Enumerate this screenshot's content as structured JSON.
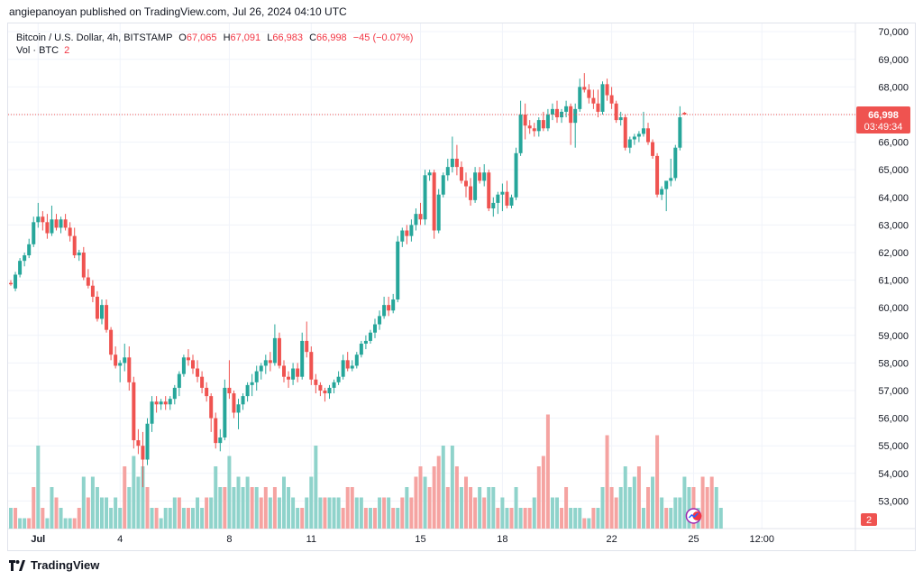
{
  "header": {
    "published": "angiepanoyan published on TradingView.com, Jul 26, 2024 04:10 UTC"
  },
  "legend": {
    "symbol": "Bitcoin / U.S. Dollar, 4h, BITSTAMP",
    "o_label": "O",
    "o": "67,065",
    "h_label": "H",
    "h": "67,091",
    "l_label": "L",
    "l": "66,983",
    "c_label": "C",
    "c": "66,998",
    "change": "−45 (−0.07%)",
    "vol_label": "Vol · BTC",
    "vol_value": "2"
  },
  "price_tag": {
    "price": "66,998",
    "countdown": "03:49:34"
  },
  "volume_tag": "2",
  "footer": {
    "brand": "TradingView"
  },
  "colors": {
    "up": "#26a69a",
    "down": "#ef5350",
    "up_vol": "#8fd3cb",
    "down_vol": "#f5a3a1",
    "grid": "#f0f3fa",
    "axis_text": "#131722"
  },
  "chart_data": {
    "type": "candlestick",
    "title": "Bitcoin / U.S. Dollar, 4h, BITSTAMP",
    "ylim": [
      52000,
      70300
    ],
    "yticks": [
      "70,000",
      "69,000",
      "68,000",
      "67,000",
      "66,000",
      "65,000",
      "64,000",
      "63,000",
      "62,000",
      "61,000",
      "60,000",
      "59,000",
      "58,000",
      "57,000",
      "56,000",
      "55,000",
      "54,000",
      "53,000"
    ],
    "ytick_values": [
      70000,
      69000,
      68000,
      67000,
      66000,
      65000,
      64000,
      63000,
      62000,
      61000,
      60000,
      59000,
      58000,
      57000,
      56000,
      55000,
      54000,
      53000
    ],
    "xticks": [
      {
        "label": "Jul",
        "index": 6
      },
      {
        "label": "4",
        "index": 24
      },
      {
        "label": "8",
        "index": 48
      },
      {
        "label": "11",
        "index": 66
      },
      {
        "label": "15",
        "index": 90
      },
      {
        "label": "18",
        "index": 108
      },
      {
        "label": "22",
        "index": 132
      },
      {
        "label": "25",
        "index": 150
      },
      {
        "label": "12:00",
        "index": 165
      }
    ],
    "last_price": 66998,
    "ohlc": [
      [
        60900,
        61000,
        60800,
        60850
      ],
      [
        60700,
        61300,
        60600,
        61200
      ],
      [
        61200,
        61800,
        61100,
        61700
      ],
      [
        61700,
        62000,
        61500,
        61900
      ],
      [
        61900,
        62500,
        61800,
        62300
      ],
      [
        62300,
        63300,
        62200,
        63100
      ],
      [
        63100,
        63800,
        62900,
        63300
      ],
      [
        63300,
        63500,
        62800,
        63100
      ],
      [
        63100,
        63400,
        62500,
        62700
      ],
      [
        62700,
        63700,
        62600,
        63200
      ],
      [
        63200,
        63400,
        62800,
        62900
      ],
      [
        62900,
        63300,
        62700,
        63200
      ],
      [
        63200,
        63400,
        62800,
        62900
      ],
      [
        62900,
        63100,
        62400,
        62600
      ],
      [
        62600,
        62900,
        61800,
        61900
      ],
      [
        61900,
        62100,
        61700,
        62000
      ],
      [
        62000,
        62200,
        61000,
        61100
      ],
      [
        61100,
        61400,
        60700,
        60800
      ],
      [
        60800,
        61000,
        60200,
        60400
      ],
      [
        60400,
        60600,
        59500,
        59600
      ],
      [
        59600,
        60300,
        59400,
        60100
      ],
      [
        60100,
        60300,
        59100,
        59200
      ],
      [
        59200,
        59300,
        58100,
        58300
      ],
      [
        58300,
        58600,
        57800,
        57900
      ],
      [
        57900,
        58100,
        57300,
        58000
      ],
      [
        58000,
        58700,
        57700,
        58200
      ],
      [
        58200,
        58600,
        57000,
        57300
      ],
      [
        57300,
        57500,
        54900,
        55200
      ],
      [
        55200,
        55600,
        54700,
        55000
      ],
      [
        55000,
        55500,
        53500,
        54500
      ],
      [
        54500,
        56000,
        54300,
        55800
      ],
      [
        55800,
        56800,
        55500,
        56600
      ],
      [
        56600,
        56800,
        56200,
        56500
      ],
      [
        56500,
        56700,
        56300,
        56600
      ],
      [
        56600,
        56800,
        56300,
        56500
      ],
      [
        56500,
        56800,
        56300,
        56700
      ],
      [
        56700,
        57200,
        56500,
        57100
      ],
      [
        57100,
        57700,
        56800,
        57600
      ],
      [
        57600,
        58300,
        57500,
        58200
      ],
      [
        58200,
        58500,
        57900,
        58100
      ],
      [
        58100,
        58300,
        57600,
        57800
      ],
      [
        57800,
        58100,
        57300,
        57500
      ],
      [
        57500,
        57700,
        56900,
        57100
      ],
      [
        57100,
        57300,
        56600,
        56800
      ],
      [
        56800,
        56900,
        55500,
        56000
      ],
      [
        56000,
        56200,
        54900,
        55100
      ],
      [
        55100,
        55600,
        54800,
        55300
      ],
      [
        55300,
        57400,
        55200,
        57100
      ],
      [
        57100,
        58100,
        56700,
        56900
      ],
      [
        56900,
        57000,
        56000,
        56200
      ],
      [
        56200,
        56700,
        55600,
        56500
      ],
      [
        56500,
        56900,
        56300,
        56800
      ],
      [
        56800,
        57300,
        56600,
        57200
      ],
      [
        57200,
        57600,
        56800,
        57300
      ],
      [
        57300,
        57900,
        57000,
        57700
      ],
      [
        57700,
        58000,
        57400,
        57900
      ],
      [
        57900,
        58300,
        57600,
        58100
      ],
      [
        58100,
        58400,
        57700,
        58000
      ],
      [
        58000,
        59400,
        57900,
        58900
      ],
      [
        58900,
        59100,
        57800,
        57900
      ],
      [
        57900,
        58100,
        57300,
        57500
      ],
      [
        57500,
        57700,
        57100,
        57400
      ],
      [
        57400,
        58000,
        57200,
        57800
      ],
      [
        57800,
        58000,
        57300,
        57500
      ],
      [
        57500,
        59100,
        57400,
        58800
      ],
      [
        58800,
        59500,
        58200,
        58400
      ],
      [
        58400,
        58600,
        57200,
        57400
      ],
      [
        57400,
        57600,
        56900,
        57200
      ],
      [
        57200,
        57300,
        56800,
        57000
      ],
      [
        57000,
        57100,
        56600,
        56900
      ],
      [
        56900,
        57200,
        56700,
        57100
      ],
      [
        57100,
        57400,
        56900,
        57300
      ],
      [
        57300,
        57700,
        57200,
        57500
      ],
      [
        57500,
        58300,
        57400,
        58100
      ],
      [
        58100,
        58400,
        57700,
        57800
      ],
      [
        57800,
        58100,
        57700,
        57900
      ],
      [
        57900,
        58400,
        57800,
        58300
      ],
      [
        58300,
        58800,
        58200,
        58700
      ],
      [
        58700,
        59000,
        58500,
        58800
      ],
      [
        58800,
        59200,
        58700,
        59100
      ],
      [
        59100,
        59600,
        58900,
        59400
      ],
      [
        59400,
        59900,
        59200,
        59700
      ],
      [
        59700,
        60400,
        59600,
        60100
      ],
      [
        60100,
        60400,
        59700,
        59900
      ],
      [
        59900,
        60500,
        59800,
        60300
      ],
      [
        60300,
        62600,
        60200,
        62400
      ],
      [
        62400,
        62900,
        62200,
        62800
      ],
      [
        62800,
        63000,
        62300,
        62600
      ],
      [
        62600,
        63200,
        62400,
        63000
      ],
      [
        63000,
        63600,
        62800,
        63400
      ],
      [
        63400,
        63800,
        63000,
        63200
      ],
      [
        63200,
        65000,
        63000,
        64800
      ],
      [
        64800,
        65000,
        64600,
        64900
      ],
      [
        64900,
        65000,
        62500,
        62800
      ],
      [
        62800,
        64300,
        62700,
        64100
      ],
      [
        64100,
        64900,
        64000,
        64800
      ],
      [
        64800,
        65400,
        64600,
        65100
      ],
      [
        65100,
        66200,
        64900,
        65400
      ],
      [
        65400,
        65900,
        64800,
        65100
      ],
      [
        65100,
        65300,
        64500,
        64600
      ],
      [
        64600,
        64900,
        64000,
        64400
      ],
      [
        64400,
        64700,
        63700,
        63900
      ],
      [
        63900,
        65100,
        63800,
        64900
      ],
      [
        64900,
        65100,
        64500,
        64600
      ],
      [
        64600,
        65200,
        64400,
        64900
      ],
      [
        64900,
        65000,
        63500,
        63600
      ],
      [
        63600,
        64000,
        63300,
        63800
      ],
      [
        63800,
        64200,
        63400,
        64100
      ],
      [
        64100,
        64500,
        63500,
        64200
      ],
      [
        64200,
        64600,
        63600,
        63700
      ],
      [
        63700,
        64100,
        63600,
        64000
      ],
      [
        64000,
        65800,
        63900,
        65600
      ],
      [
        65600,
        67500,
        65500,
        67000
      ],
      [
        67000,
        67400,
        66100,
        66600
      ],
      [
        66600,
        66800,
        66300,
        66500
      ],
      [
        66500,
        66700,
        66200,
        66400
      ],
      [
        66400,
        66900,
        66200,
        66800
      ],
      [
        66800,
        67100,
        66400,
        66500
      ],
      [
        66500,
        67200,
        66400,
        67000
      ],
      [
        67000,
        67400,
        66800,
        67200
      ],
      [
        67200,
        67500,
        66700,
        66900
      ],
      [
        66900,
        67200,
        66700,
        67100
      ],
      [
        67100,
        67500,
        66900,
        67300
      ],
      [
        67300,
        67400,
        65900,
        66700
      ],
      [
        66700,
        67400,
        65800,
        67200
      ],
      [
        67200,
        68300,
        67100,
        68000
      ],
      [
        68000,
        68500,
        67800,
        67900
      ],
      [
        67900,
        68100,
        67400,
        67600
      ],
      [
        67600,
        67900,
        67200,
        67400
      ],
      [
        67400,
        67900,
        66900,
        67100
      ],
      [
        67100,
        68200,
        67000,
        68100
      ],
      [
        68100,
        68300,
        67500,
        67700
      ],
      [
        67700,
        68000,
        67200,
        67400
      ],
      [
        67400,
        67500,
        66700,
        66800
      ],
      [
        66800,
        67100,
        66600,
        66900
      ],
      [
        66900,
        67000,
        65700,
        65800
      ],
      [
        65800,
        66200,
        65600,
        66100
      ],
      [
        66100,
        66300,
        65900,
        66200
      ],
      [
        66200,
        66400,
        66000,
        66300
      ],
      [
        66300,
        67100,
        66200,
        66500
      ],
      [
        66500,
        66700,
        65900,
        66000
      ],
      [
        66000,
        66100,
        65400,
        65500
      ],
      [
        65500,
        65600,
        64000,
        64100
      ],
      [
        64100,
        64400,
        63900,
        64300
      ],
      [
        64300,
        64500,
        63500,
        64600
      ],
      [
        64600,
        65400,
        64400,
        64700
      ],
      [
        64700,
        65900,
        64600,
        65800
      ],
      [
        65800,
        67300,
        65700,
        66900
      ],
      [
        67065,
        67091,
        66983,
        66998
      ]
    ],
    "volumes": [
      [
        2,
        1
      ],
      [
        2,
        0
      ],
      [
        1,
        1
      ],
      [
        1,
        1
      ],
      [
        1,
        0
      ],
      [
        4,
        0
      ],
      [
        8,
        1
      ],
      [
        2,
        0
      ],
      [
        1,
        1
      ],
      [
        4,
        1
      ],
      [
        3,
        0
      ],
      [
        2,
        1
      ],
      [
        1,
        1
      ],
      [
        1,
        1
      ],
      [
        1,
        0
      ],
      [
        2,
        0
      ],
      [
        5,
        1
      ],
      [
        3,
        0
      ],
      [
        5,
        1
      ],
      [
        4,
        1
      ],
      [
        3,
        1
      ],
      [
        3,
        1
      ],
      [
        2,
        1
      ],
      [
        3,
        1
      ],
      [
        2,
        1
      ],
      [
        6,
        0
      ],
      [
        4,
        1
      ],
      [
        7,
        1
      ],
      [
        5,
        1
      ],
      [
        6,
        1
      ],
      [
        4,
        0
      ],
      [
        2,
        1
      ],
      [
        2,
        0
      ],
      [
        1,
        1
      ],
      [
        2,
        1
      ],
      [
        2,
        1
      ],
      [
        3,
        1
      ],
      [
        3,
        0
      ],
      [
        2,
        1
      ],
      [
        2,
        0
      ],
      [
        2,
        1
      ],
      [
        3,
        1
      ],
      [
        2,
        1
      ],
      [
        3,
        0
      ],
      [
        3,
        1
      ],
      [
        6,
        1
      ],
      [
        4,
        1
      ],
      [
        4,
        0
      ],
      [
        7,
        1
      ],
      [
        4,
        1
      ],
      [
        5,
        1
      ],
      [
        4,
        1
      ],
      [
        5,
        1
      ],
      [
        4,
        0
      ],
      [
        4,
        1
      ],
      [
        3,
        0
      ],
      [
        4,
        0
      ],
      [
        3,
        1
      ],
      [
        4,
        0
      ],
      [
        3,
        1
      ],
      [
        5,
        1
      ],
      [
        4,
        1
      ],
      [
        3,
        1
      ],
      [
        2,
        1
      ],
      [
        2,
        0
      ],
      [
        3,
        1
      ],
      [
        5,
        1
      ],
      [
        8,
        1
      ],
      [
        3,
        1
      ],
      [
        3,
        0
      ],
      [
        3,
        1
      ],
      [
        3,
        1
      ],
      [
        3,
        1
      ],
      [
        2,
        0
      ],
      [
        4,
        0
      ],
      [
        4,
        0
      ],
      [
        3,
        1
      ],
      [
        3,
        1
      ],
      [
        2,
        0
      ],
      [
        2,
        1
      ],
      [
        2,
        0
      ],
      [
        3,
        1
      ],
      [
        3,
        0
      ],
      [
        3,
        1
      ],
      [
        2,
        0
      ],
      [
        2,
        1
      ],
      [
        3,
        0
      ],
      [
        4,
        1
      ],
      [
        3,
        0
      ],
      [
        5,
        0
      ],
      [
        6,
        0
      ],
      [
        5,
        1
      ],
      [
        4,
        0
      ],
      [
        6,
        0
      ],
      [
        7,
        0
      ],
      [
        8,
        1
      ],
      [
        4,
        0
      ],
      [
        8,
        1
      ],
      [
        6,
        0
      ],
      [
        4,
        1
      ],
      [
        5,
        0
      ],
      [
        4,
        0
      ],
      [
        3,
        0
      ],
      [
        4,
        1
      ],
      [
        3,
        0
      ],
      [
        4,
        1
      ],
      [
        4,
        1
      ],
      [
        2,
        0
      ],
      [
        3,
        1
      ],
      [
        2,
        1
      ],
      [
        2,
        0
      ],
      [
        4,
        1
      ],
      [
        2,
        1
      ],
      [
        2,
        0
      ],
      [
        2,
        0
      ],
      [
        3,
        1
      ],
      [
        6,
        0
      ],
      [
        7,
        0
      ],
      [
        11,
        0
      ],
      [
        3,
        1
      ],
      [
        3,
        1
      ],
      [
        2,
        0
      ],
      [
        4,
        0
      ],
      [
        2,
        1
      ],
      [
        2,
        1
      ],
      [
        2,
        1
      ],
      [
        1,
        0
      ],
      [
        1,
        1
      ],
      [
        2,
        0
      ],
      [
        2,
        1
      ],
      [
        4,
        1
      ],
      [
        9,
        0
      ],
      [
        4,
        0
      ],
      [
        3,
        0
      ],
      [
        4,
        1
      ],
      [
        6,
        1
      ],
      [
        4,
        1
      ],
      [
        5,
        1
      ],
      [
        6,
        0
      ],
      [
        2,
        1
      ],
      [
        4,
        0
      ],
      [
        5,
        1
      ],
      [
        9,
        0
      ],
      [
        3,
        1
      ],
      [
        2,
        0
      ],
      [
        2,
        1
      ],
      [
        3,
        1
      ],
      [
        3,
        1
      ],
      [
        5,
        1
      ],
      [
        4,
        1
      ],
      [
        4,
        0
      ],
      [
        2,
        1
      ],
      [
        5,
        0
      ],
      [
        4,
        0
      ],
      [
        5,
        0
      ],
      [
        4,
        1
      ],
      [
        2,
        1
      ]
    ]
  }
}
